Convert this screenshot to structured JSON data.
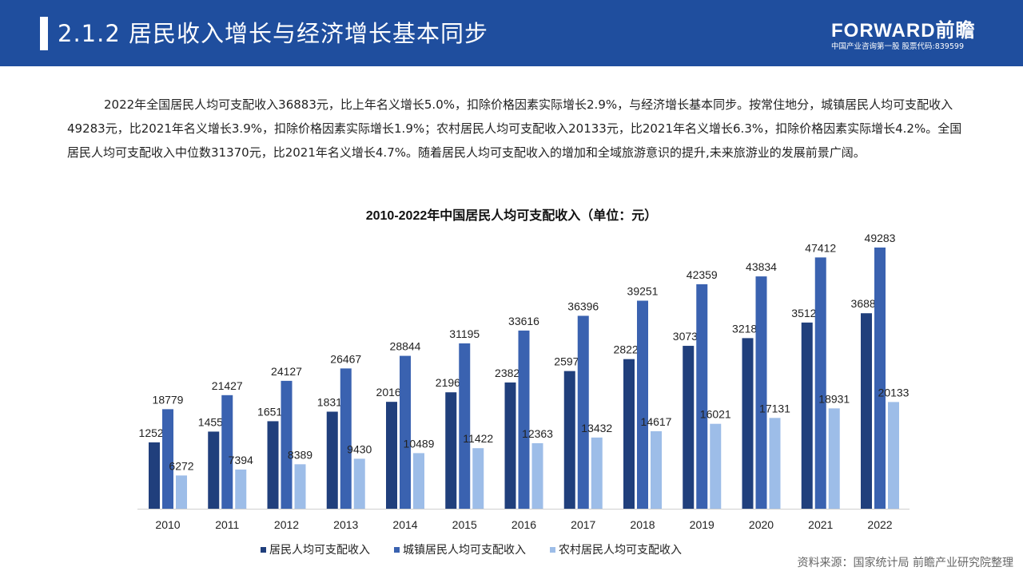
{
  "header": {
    "title": "2.1.2 居民收入增长与经济增长基本同步",
    "logo_text": "FORWARD前瞻",
    "slogan": "中国产业咨询第一股 股票代码:839599"
  },
  "paragraph": "2022年全国居民人均可支配收入36883元，比上年名义增长5.0%，扣除价格因素实际增长2.9%，与经济增长基本同步。按常住地分，城镇居民人均可支配收入49283元，比2021年名义增长3.9%，扣除价格因素实际增长1.9%；农村居民人均可支配收入20133元，比2021年名义增长6.3%，扣除价格因素实际增长4.2%。全国居民人均可支配收入中位数31370元，比2021年名义增长4.7%。随着居民人均可支配收入的增加和全域旅游意识的提升,未来旅游业的发展前景广阔。",
  "source": "资料来源：国家统计局 前瞻产业研究院整理",
  "colors": {
    "header": "#1f4e9e",
    "national": "#203f7c",
    "urban": "#3a62b0",
    "rural": "#9dbde8"
  },
  "chart_data": {
    "type": "bar",
    "title": "2010-2022年中国居民人均可支配收入（单位：元）",
    "categories": [
      "2010",
      "2011",
      "2012",
      "2013",
      "2014",
      "2015",
      "2016",
      "2017",
      "2018",
      "2019",
      "2020",
      "2021",
      "2022"
    ],
    "series": [
      {
        "name": "居民人均可支配收入",
        "values": [
          12520,
          14551,
          16510,
          18311,
          20167,
          21966,
          23821,
          25974,
          28228,
          30733,
          32189,
          35128,
          36883
        ]
      },
      {
        "name": "城镇居民人均可支配收入",
        "values": [
          18779,
          21427,
          24127,
          26467,
          28844,
          31195,
          33616,
          36396,
          39251,
          42359,
          43834,
          47412,
          49283
        ]
      },
      {
        "name": "农村居民人均可支配收入",
        "values": [
          6272,
          7394,
          8389,
          9430,
          10489,
          11422,
          12363,
          13432,
          14617,
          16021,
          17131,
          18931,
          20133
        ]
      }
    ],
    "xlabel": "",
    "ylabel": "",
    "ylim": [
      0,
      55000
    ],
    "grid": false,
    "legend": "bottom",
    "data_labels": true
  }
}
